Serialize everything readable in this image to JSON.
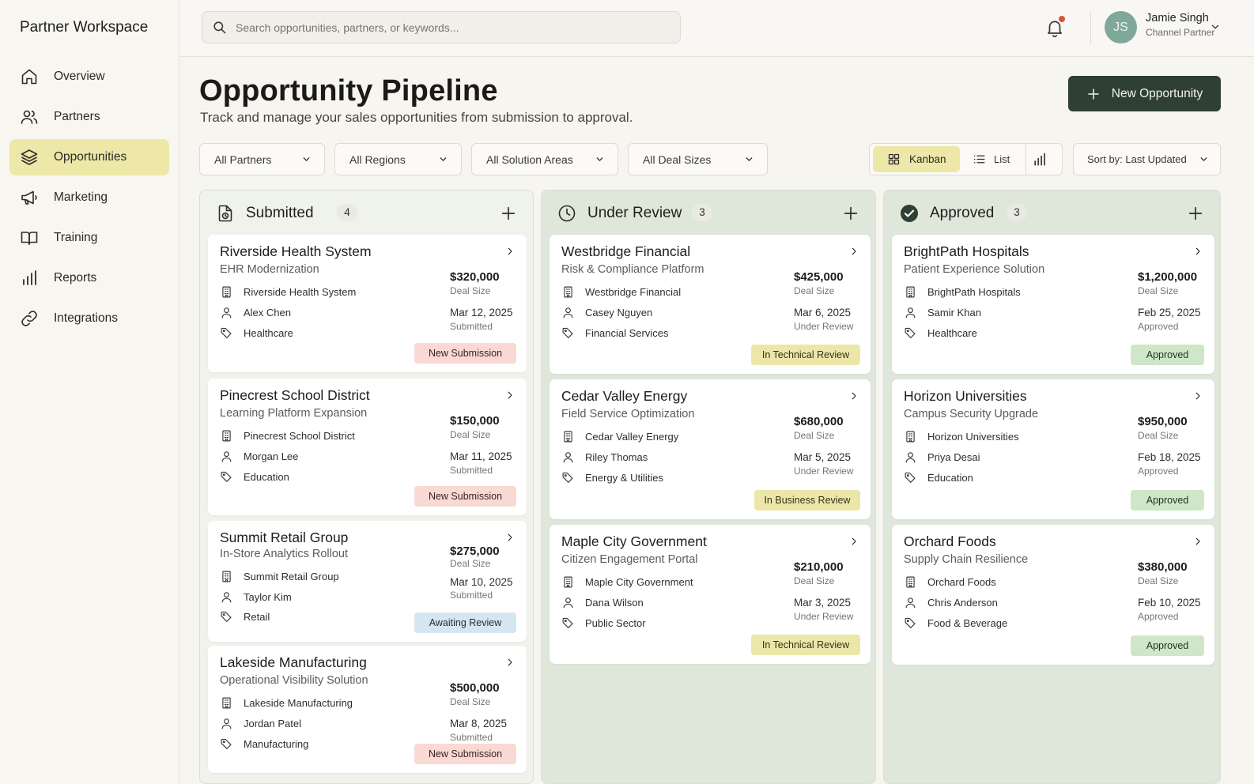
{
  "sidebar": {
    "brand": "Partner Workspace",
    "items": [
      {
        "label": "Overview",
        "icon": "home-icon",
        "active": false
      },
      {
        "label": "Partners",
        "icon": "users-icon",
        "active": false
      },
      {
        "label": "Opportunities",
        "icon": "layers-icon",
        "active": true
      },
      {
        "label": "Marketing",
        "icon": "megaphone-icon",
        "active": false
      },
      {
        "label": "Training",
        "icon": "book-icon",
        "active": false
      },
      {
        "label": "Reports",
        "icon": "bar-chart-icon",
        "active": false
      },
      {
        "label": "Integrations",
        "icon": "link-icon",
        "active": false
      }
    ]
  },
  "topbar": {
    "search_placeholder": "Search opportunities, partners, or keywords...",
    "user": {
      "initials": "JS",
      "name": "Jamie Singh",
      "role": "Channel Partner"
    }
  },
  "header": {
    "title": "Opportunity Pipeline",
    "subtitle": "Track and manage your sales opportunities from submission to approval.",
    "new_button": "New Opportunity"
  },
  "filters": {
    "partners": "All Partners",
    "regions": "All Regions",
    "solution_areas": "All Solution Areas",
    "deal_sizes": "All Deal Sizes",
    "views": {
      "kanban": "Kanban",
      "list": "List"
    },
    "sort": "Sort by: Last Updated"
  },
  "colors": {
    "accent": "#ede8a8",
    "primary_button": "#2f3f33",
    "column_bg": "#dfe7da",
    "badge_new_submission": "#f9d9d3",
    "badge_awaiting_review": "#d6e6f1",
    "badge_in_review": "#ece7a9",
    "badge_approved": "#cfe6c8"
  },
  "columns": [
    {
      "title": "Submitted",
      "count": "4",
      "icon": "file-clock-icon",
      "cards": [
        {
          "title": "Riverside Health System",
          "subtitle": "EHR Modernization",
          "org": "Riverside Health System",
          "contact": "Alex Chen",
          "industry": "Healthcare",
          "amount": "$320,000",
          "amount_label": "Deal Size",
          "date": "Mar 12, 2025",
          "date_label": "Submitted",
          "badge": "New Submission",
          "badge_kind": "new"
        },
        {
          "title": "Pinecrest School District",
          "subtitle": "Learning Platform Expansion",
          "org": "Pinecrest School District",
          "contact": "Morgan Lee",
          "industry": "Education",
          "amount": "$150,000",
          "amount_label": "Deal Size",
          "date": "Mar 11, 2025",
          "date_label": "Submitted",
          "badge": "New Submission",
          "badge_kind": "new"
        },
        {
          "title": "Summit Retail Group",
          "subtitle": "In-Store Analytics Rollout",
          "org": "Summit Retail Group",
          "contact": "Taylor Kim",
          "industry": "Retail",
          "amount": "$275,000",
          "amount_label": "Deal Size",
          "date": "Mar 10, 2025",
          "date_label": "Submitted",
          "badge": "Awaiting Review",
          "badge_kind": "awaiting"
        },
        {
          "title": "Lakeside Manufacturing",
          "subtitle": "Operational Visibility Solution",
          "org": "Lakeside Manufacturing",
          "contact": "Jordan Patel",
          "industry": "Manufacturing",
          "amount": "$500,000",
          "amount_label": "Deal Size",
          "date": "Mar 8, 2025",
          "date_label": "Submitted",
          "badge": "New Submission",
          "badge_kind": "new"
        }
      ]
    },
    {
      "title": "Under Review",
      "count": "3",
      "icon": "clock-icon",
      "cards": [
        {
          "title": "Westbridge Financial",
          "subtitle": "Risk & Compliance Platform",
          "org": "Westbridge Financial",
          "contact": "Casey Nguyen",
          "industry": "Financial Services",
          "amount": "$425,000",
          "amount_label": "Deal Size",
          "date": "Mar 6, 2025",
          "date_label": "Under Review",
          "badge": "In Technical Review",
          "badge_kind": "review"
        },
        {
          "title": "Cedar Valley Energy",
          "subtitle": "Field Service Optimization",
          "org": "Cedar Valley Energy",
          "contact": "Riley Thomas",
          "industry": "Energy & Utilities",
          "amount": "$680,000",
          "amount_label": "Deal Size",
          "date": "Mar 5, 2025",
          "date_label": "Under Review",
          "badge": "In Business Review",
          "badge_kind": "review"
        },
        {
          "title": "Maple City Government",
          "subtitle": "Citizen Engagement Portal",
          "org": "Maple City Government",
          "contact": "Dana Wilson",
          "industry": "Public Sector",
          "amount": "$210,000",
          "amount_label": "Deal Size",
          "date": "Mar 3, 2025",
          "date_label": "Under Review",
          "badge": "In Technical Review",
          "badge_kind": "review"
        }
      ]
    },
    {
      "title": "Approved",
      "count": "3",
      "icon": "check-circle-icon",
      "cards": [
        {
          "title": "BrightPath Hospitals",
          "subtitle": "Patient Experience Solution",
          "org": "BrightPath Hospitals",
          "contact": "Samir Khan",
          "industry": "Healthcare",
          "amount": "$1,200,000",
          "amount_label": "Deal Size",
          "date": "Feb 25, 2025",
          "date_label": "Approved",
          "badge": "Approved",
          "badge_kind": "approved"
        },
        {
          "title": "Horizon Universities",
          "subtitle": "Campus Security Upgrade",
          "org": "Horizon Universities",
          "contact": "Priya Desai",
          "industry": "Education",
          "amount": "$950,000",
          "amount_label": "Deal Size",
          "date": "Feb 18, 2025",
          "date_label": "Approved",
          "badge": "Approved",
          "badge_kind": "approved"
        },
        {
          "title": "Orchard Foods",
          "subtitle": "Supply Chain Resilience",
          "org": "Orchard Foods",
          "contact": "Chris Anderson",
          "industry": "Food & Beverage",
          "amount": "$380,000",
          "amount_label": "Deal Size",
          "date": "Feb 10, 2025",
          "date_label": "Approved",
          "badge": "Approved",
          "badge_kind": "approved"
        }
      ]
    }
  ]
}
